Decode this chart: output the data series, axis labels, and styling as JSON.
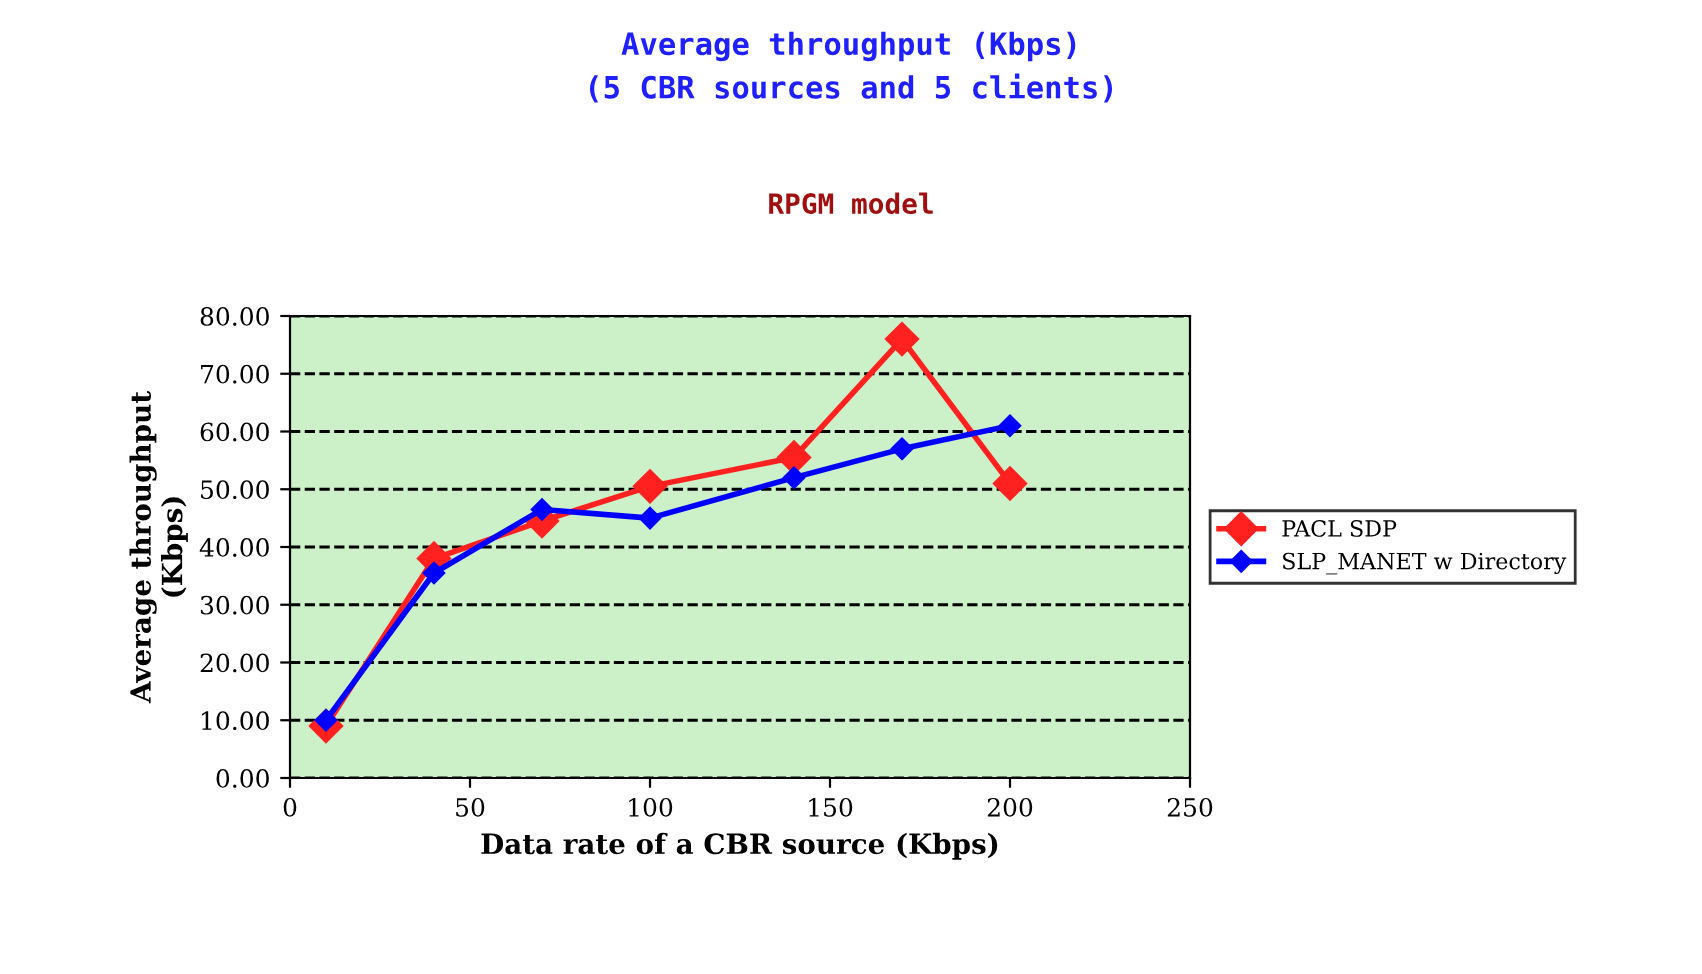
{
  "chart_data": {
    "type": "line",
    "title": "Average throughput (Kbps)\n(5 CBR sources and 5 clients)",
    "subtitle": "RPGM model",
    "xlabel": "Data rate of a CBR source (Kbps)",
    "ylabel": "Average throughput\n(Kbps)",
    "x": [
      10,
      40,
      70,
      100,
      140,
      170,
      200
    ],
    "series": [
      {
        "name": "PACL SDP",
        "color": "#ff2020",
        "values": [
          9,
          38,
          44.5,
          50.5,
          55.5,
          76,
          51
        ]
      },
      {
        "name": "SLP_MANET w Directory",
        "color": "#0000ff",
        "values": [
          10,
          35.5,
          46.5,
          45,
          52,
          57,
          61
        ]
      }
    ],
    "xlim": [
      0,
      250
    ],
    "xticks": [
      0,
      50,
      100,
      150,
      200,
      250
    ],
    "ylim": [
      0,
      80
    ],
    "yticks": [
      {
        "value": 0,
        "label": "0.00"
      },
      {
        "value": 10,
        "label": "10.00"
      },
      {
        "value": 20,
        "label": "20.00"
      },
      {
        "value": 30,
        "label": "30.00"
      },
      {
        "value": 40,
        "label": "40.00"
      },
      {
        "value": 50,
        "label": "50.00"
      },
      {
        "value": 60,
        "label": "60.00"
      },
      {
        "value": 70,
        "label": "70.00"
      },
      {
        "value": 80,
        "label": "80.00"
      }
    ],
    "grid": "y",
    "legend": "right",
    "marker": "diamond",
    "line_style": "solid"
  }
}
